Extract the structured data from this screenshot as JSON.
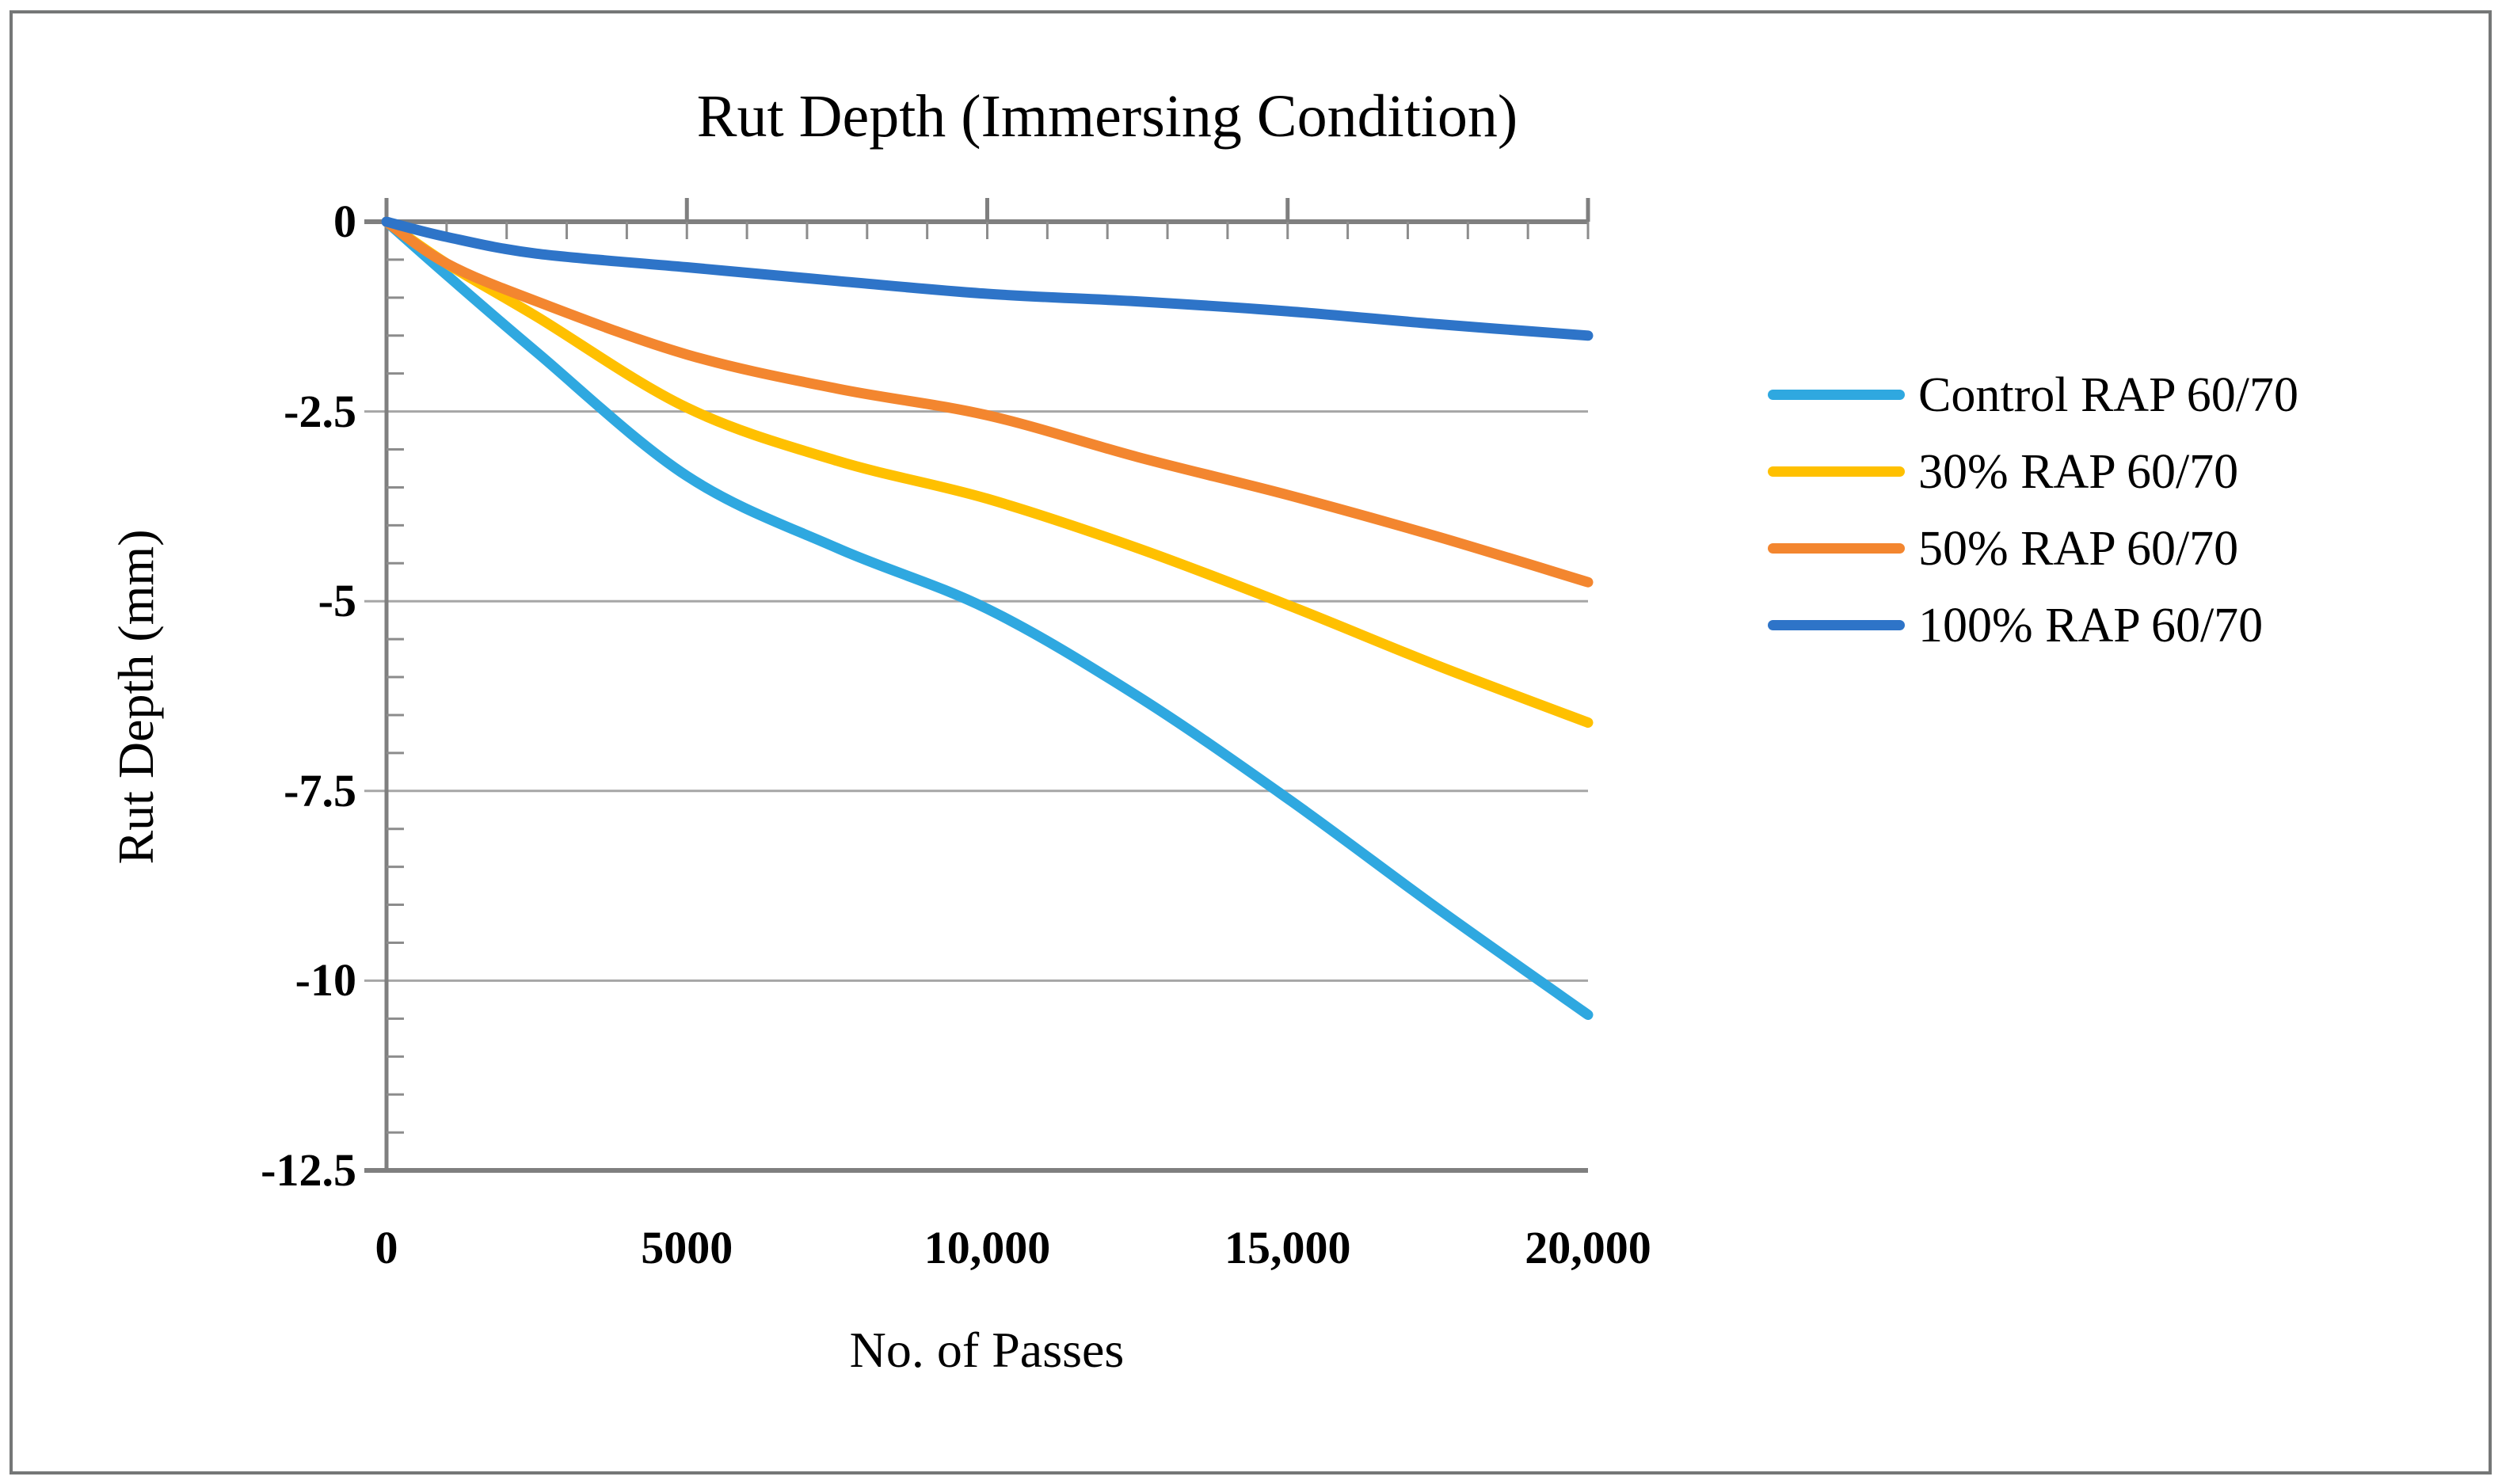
{
  "figure": {
    "background": "#ffffff",
    "border_color": "#757777"
  },
  "chart_data": {
    "type": "line",
    "title": "Rut Depth (Immersing Condition)",
    "xlabel": "No. of Passes",
    "ylabel": "Rut Depth (mm)",
    "xlim": [
      0,
      20000
    ],
    "ylim": [
      -12.5,
      0
    ],
    "grid": "horizontal-major",
    "legend_position": "right",
    "colors": {
      "axis": "#7f7f7f",
      "grid": "#a6a6a6",
      "tick": "#8c8c8c",
      "text": "#000000"
    },
    "x_ticks": [
      {
        "v": 0,
        "label": "0"
      },
      {
        "v": 5000,
        "label": "5000"
      },
      {
        "v": 10000,
        "label": "10,000"
      },
      {
        "v": 15000,
        "label": "15,000"
      },
      {
        "v": 20000,
        "label": "20,000"
      }
    ],
    "y_ticks": [
      {
        "v": 0,
        "label": "0"
      },
      {
        "v": -2.5,
        "label": "-2.5"
      },
      {
        "v": -5,
        "label": "-5"
      },
      {
        "v": -7.5,
        "label": "-7.5"
      },
      {
        "v": -10,
        "label": "-10"
      },
      {
        "v": -12.5,
        "label": "-12.5"
      }
    ],
    "x_minor_step": 1000,
    "y_minor_step": 0.5,
    "x": [
      0,
      1000,
      2500,
      5000,
      7500,
      10000,
      12500,
      15000,
      17500,
      20000
    ],
    "series": [
      {
        "name": "Control RAP 60/70",
        "color": "#2fa8e0",
        "values": [
          0,
          -0.7,
          -1.72,
          -3.35,
          -4.3,
          -5.1,
          -6.25,
          -7.6,
          -9.05,
          -10.45
        ]
      },
      {
        "name": "30% RAP 60/70",
        "color": "#ffc000",
        "values": [
          0,
          -0.55,
          -1.25,
          -2.45,
          -3.15,
          -3.65,
          -4.3,
          -5.05,
          -5.85,
          -6.6
        ]
      },
      {
        "name": "50% RAP 60/70",
        "color": "#f3862f",
        "values": [
          0,
          -0.55,
          -1.05,
          -1.75,
          -2.2,
          -2.55,
          -3.1,
          -3.6,
          -4.15,
          -4.75
        ]
      },
      {
        "name": "100% RAP 60/70",
        "color": "#2e74c8",
        "values": [
          0,
          -0.2,
          -0.42,
          -0.6,
          -0.78,
          -0.95,
          -1.05,
          -1.18,
          -1.35,
          -1.5
        ]
      }
    ]
  }
}
